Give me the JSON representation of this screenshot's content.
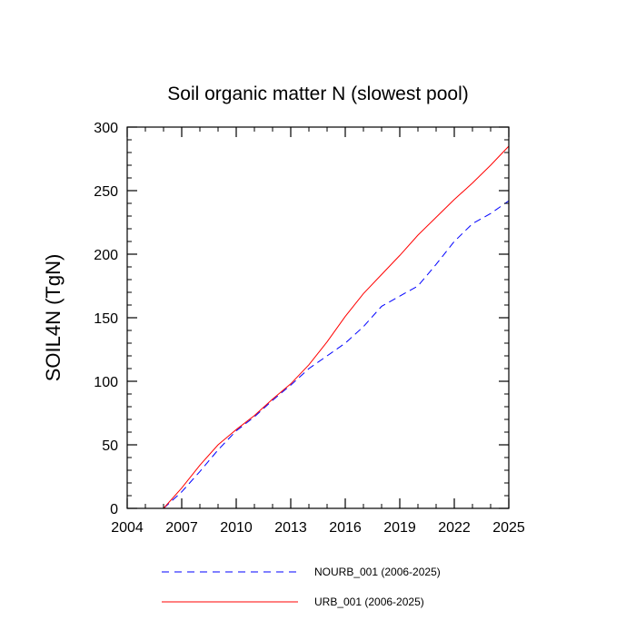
{
  "chart_data": {
    "type": "line",
    "title": "Soil organic matter N (slowest pool)",
    "xlabel": "",
    "ylabel": "SOIL4N  (TgN)",
    "xlim": [
      2004,
      2025
    ],
    "ylim": [
      0,
      300
    ],
    "x_ticks": [
      2004,
      2007,
      2010,
      2013,
      2016,
      2019,
      2022,
      2025
    ],
    "y_ticks": [
      0,
      50,
      100,
      150,
      200,
      250,
      300
    ],
    "grid": false,
    "legend_position": "bottom",
    "series": [
      {
        "name": "NOURB_001 (2006-2025)",
        "color": "#0000ff",
        "dash": "dashed",
        "x": [
          2006,
          2007,
          2008,
          2009,
          2010,
          2011,
          2012,
          2013,
          2014,
          2015,
          2016,
          2017,
          2018,
          2019,
          2020,
          2021,
          2022,
          2023,
          2024,
          2025
        ],
        "values": [
          0,
          13,
          29,
          46,
          61,
          72,
          85,
          97,
          110,
          120,
          130,
          143,
          159,
          167,
          175,
          192,
          210,
          224,
          232,
          242
        ]
      },
      {
        "name": "URB_001 (2006-2025)",
        "color": "#ff0000",
        "dash": "solid",
        "x": [
          2006,
          2007,
          2008,
          2009,
          2010,
          2011,
          2012,
          2013,
          2014,
          2015,
          2016,
          2017,
          2018,
          2019,
          2020,
          2021,
          2022,
          2023,
          2024,
          2025
        ],
        "values": [
          0,
          16,
          34,
          50,
          62,
          73,
          86,
          98,
          113,
          131,
          151,
          169,
          184,
          199,
          215,
          229,
          243,
          256,
          270,
          285
        ]
      }
    ]
  }
}
